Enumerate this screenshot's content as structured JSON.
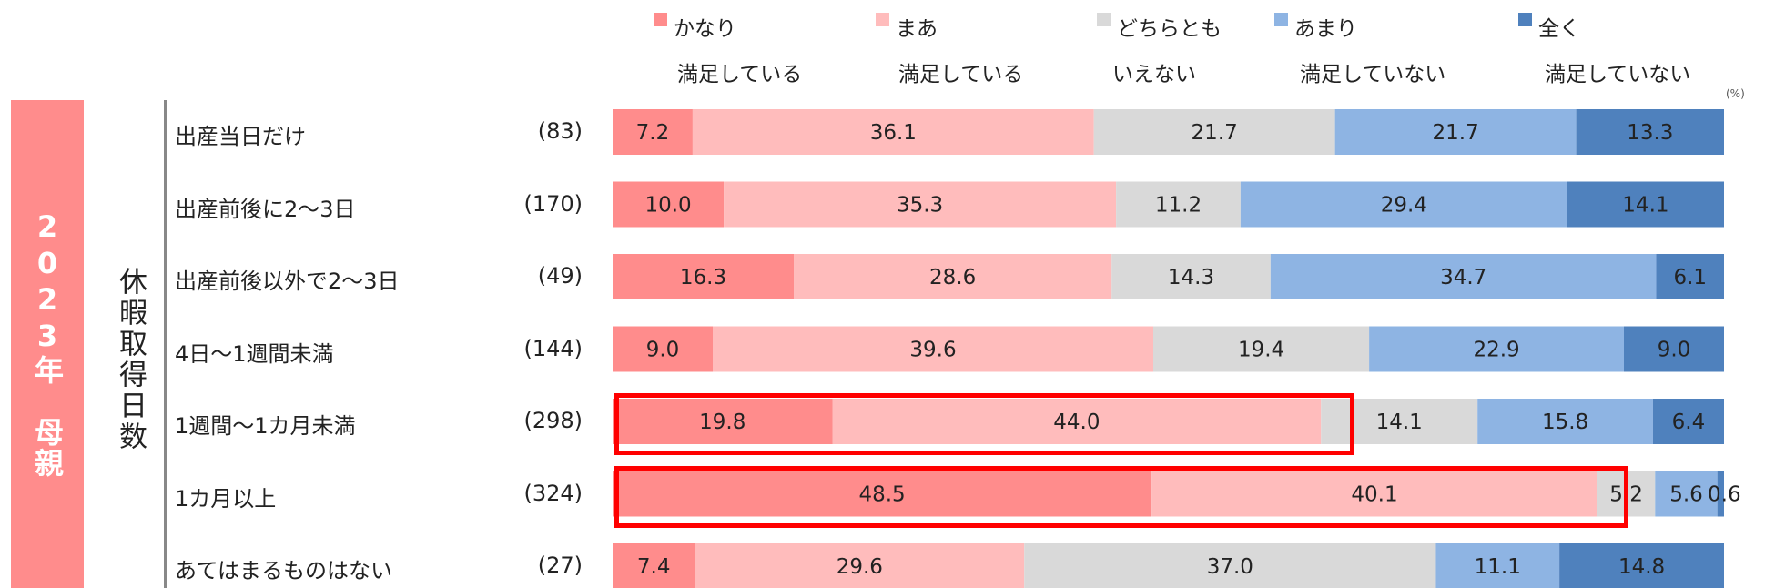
{
  "side_label": "2023年　母親",
  "group_label": "休暇取得日数",
  "unit": "(%)",
  "colors": {
    "side_band": "#ff8c8c",
    "highlight": "#ff0000"
  },
  "legend": [
    {
      "line1": "かなり",
      "line2": "満足している",
      "color": "#ff8c8c"
    },
    {
      "line1": "まあ",
      "line2": "満足している",
      "color": "#ffbcbc"
    },
    {
      "line1": "どちらとも",
      "line2": "いえない",
      "color": "#d9d9d9"
    },
    {
      "line1": "あまり",
      "line2": "満足していない",
      "color": "#8eb4e3"
    },
    {
      "line1": "全く",
      "line2": "満足していない",
      "color": "#4f81bd"
    }
  ],
  "chart_data": {
    "type": "bar",
    "orientation": "horizontal-stacked-100",
    "categories": [
      "出産当日だけ",
      "出産前後に2～3日",
      "出産前後以外で2～3日",
      "4日～1週間未満",
      "1週間～1カ月未満",
      "1カ月以上",
      "あてはまるものはない"
    ],
    "n": [
      "(83)",
      "(170)",
      "(49)",
      "(144)",
      "(298)",
      "(324)",
      "(27)"
    ],
    "series": [
      {
        "name": "かなり満足している",
        "values": [
          7.2,
          10.0,
          16.3,
          9.0,
          19.8,
          48.5,
          7.4
        ]
      },
      {
        "name": "まあ満足している",
        "values": [
          36.1,
          35.3,
          28.6,
          39.6,
          44.0,
          40.1,
          29.6
        ]
      },
      {
        "name": "どちらともいえない",
        "values": [
          21.7,
          11.2,
          14.3,
          19.4,
          14.1,
          5.2,
          37.0
        ]
      },
      {
        "name": "あまり満足していない",
        "values": [
          21.7,
          29.4,
          34.7,
          22.9,
          15.8,
          5.6,
          11.1
        ]
      },
      {
        "name": "全く満足していない",
        "values": [
          13.3,
          14.1,
          6.1,
          9.0,
          6.4,
          0.6,
          14.8
        ]
      }
    ],
    "value_labels": [
      [
        "7.2",
        "36.1",
        "21.7",
        "21.7",
        "13.3"
      ],
      [
        "10.0",
        "35.3",
        "11.2",
        "29.4",
        "14.1"
      ],
      [
        "16.3",
        "28.6",
        "14.3",
        "34.7",
        "6.1"
      ],
      [
        "9.0",
        "39.6",
        "19.4",
        "22.9",
        "9.0"
      ],
      [
        "19.8",
        "44.0",
        "14.1",
        "15.8",
        "6.4"
      ],
      [
        "48.5",
        "40.1",
        "5.2",
        "5.6",
        "0.6"
      ],
      [
        "7.4",
        "29.6",
        "37.0",
        "11.1",
        "14.8"
      ]
    ],
    "xlim": [
      0,
      100
    ],
    "highlighted_rows": [
      4,
      5
    ]
  }
}
